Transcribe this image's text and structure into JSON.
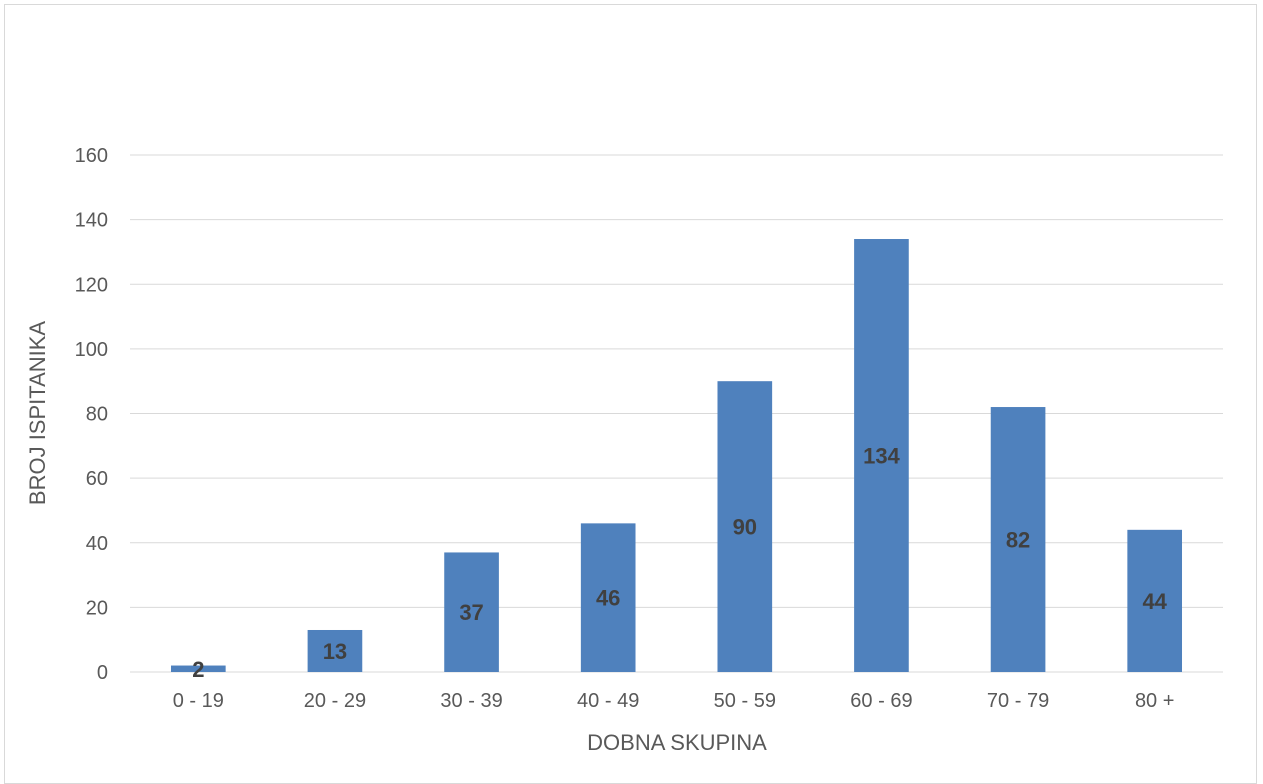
{
  "chart_data": {
    "type": "bar",
    "title": "",
    "xlabel": "DOBNA SKUPINA",
    "ylabel": "BROJ ISPITANIKA",
    "categories": [
      "0 - 19",
      "20 - 29",
      "30 - 39",
      "40 - 49",
      "50 - 59",
      "60 - 69",
      "70 - 79",
      "80 +"
    ],
    "values": [
      2,
      13,
      37,
      46,
      90,
      134,
      82,
      44
    ],
    "data_labels": [
      "2",
      "13",
      "37",
      "46",
      "90",
      "134",
      "82",
      "44"
    ],
    "ylim": [
      0,
      160
    ],
    "yticks": [
      "0",
      "20",
      "40",
      "60",
      "80",
      "100",
      "120",
      "140",
      "160"
    ],
    "grid": true,
    "legend": "none",
    "bar_color": "#4f81bd",
    "gridline_color": "#d9d9d9",
    "data_label_position": "center"
  }
}
